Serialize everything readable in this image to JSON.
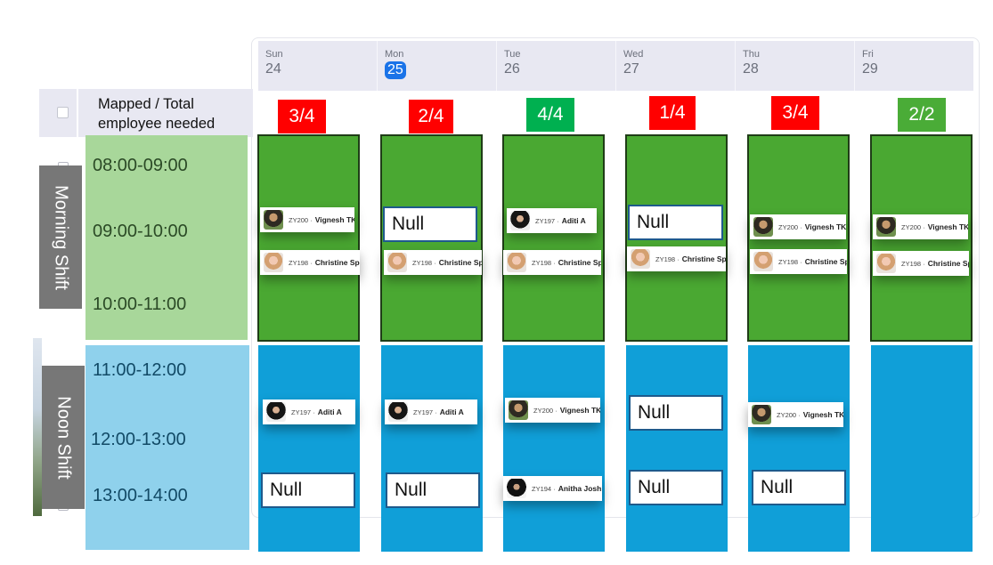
{
  "days": [
    {
      "name": "Sun",
      "date": "24",
      "today": false
    },
    {
      "name": "Mon",
      "date": "25",
      "today": true
    },
    {
      "name": "Tue",
      "date": "26",
      "today": false
    },
    {
      "name": "Wed",
      "date": "27",
      "today": false
    },
    {
      "name": "Thu",
      "date": "28",
      "today": false
    },
    {
      "name": "Fri",
      "date": "29",
      "today": false
    }
  ],
  "mapped_header": {
    "line1": "Mapped / Total",
    "line2": "employee needed"
  },
  "shifts": {
    "morning": {
      "label": "Morning Shift",
      "slots": [
        "08:00-09:00",
        "09:00-10:00",
        "10:00-11:00"
      ]
    },
    "noon": {
      "label": "Noon Shift",
      "slots": [
        "11:00-12:00",
        "12:00-13:00",
        "13:00-14:00"
      ]
    }
  },
  "counts": [
    "3/4",
    "2/4",
    "4/4",
    "1/4",
    "3/4",
    "2/2"
  ],
  "colors": {
    "count_red": "#ff0000",
    "count_green": "#00b050",
    "morning_column": "#4aa832",
    "noon_column": "#109fd8",
    "today_badge": "#1a73e8"
  },
  "employees": {
    "vignesh": {
      "id": "ZY200 ·",
      "name": "Vignesh TK"
    },
    "christine": {
      "id": "ZY198 ·",
      "name": "Christine Spalding"
    },
    "aditi": {
      "id": "ZY197 ·",
      "name": "Aditi A"
    },
    "anitha": {
      "id": "ZY194 ·",
      "name": "Anitha Joshi"
    }
  },
  "null_label": "Null"
}
